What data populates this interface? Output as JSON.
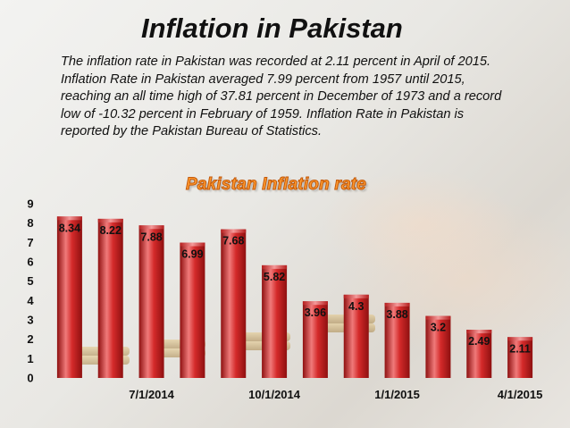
{
  "page": {
    "title": "Inflation in Pakistan",
    "description": "The inflation rate in Pakistan was recorded at 2.11 percent in April of 2015. Inflation Rate in Pakistan averaged 7.99 percent from 1957 until 2015, reaching an all time high of 37.81 percent in December of 1973 and a record low of -10.32 percent in February of 1959. Inflation Rate in Pakistan is reported by the Pakistan Bureau of Statistics."
  },
  "colors": {
    "bar_fill": "#d42a2a",
    "bar_highlight": "#f07a7a",
    "bar_shadow": "#8e1010",
    "chart_title": "#ff9a2e"
  },
  "chart_data": {
    "type": "bar",
    "title": "Pakistan Inflation rate",
    "xlabel": "",
    "ylabel": "",
    "ylim": [
      0,
      9
    ],
    "yticks": [
      "0",
      "1",
      "2",
      "3",
      "4",
      "5",
      "6",
      "7",
      "8",
      "9"
    ],
    "x_tick_labels": [
      {
        "label": "7/1/2014",
        "index": 2
      },
      {
        "label": "10/1/2014",
        "index": 5
      },
      {
        "label": "1/1/2015",
        "index": 8
      },
      {
        "label": "4/1/2015",
        "index": 11
      }
    ],
    "values": [
      8.34,
      8.22,
      7.88,
      6.99,
      7.68,
      5.82,
      3.96,
      4.3,
      3.88,
      3.2,
      2.49,
      2.11
    ],
    "data_labels": [
      "8.34",
      "8.22",
      "7.88",
      "6.99",
      "7.68",
      "5.82",
      "3.96",
      "4.3",
      "3.88",
      "3.2",
      "2.49",
      "2.11"
    ],
    "grid": false,
    "legend": "none"
  }
}
